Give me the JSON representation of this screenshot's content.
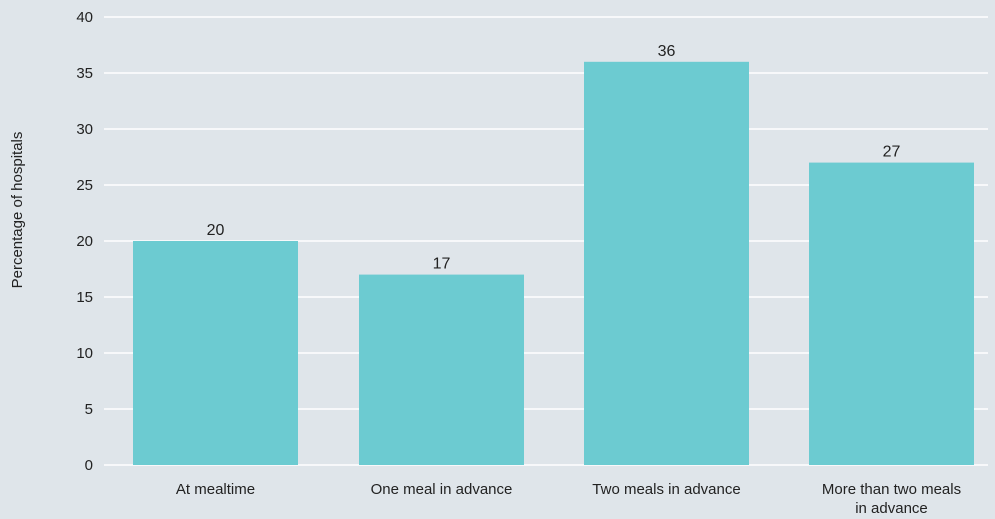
{
  "chart_data": {
    "type": "bar",
    "title": "",
    "xlabel": "",
    "ylabel": "Percentage of hospitals",
    "categories": [
      [
        "At mealtime"
      ],
      [
        "One meal in advance"
      ],
      [
        "Two meals in advance"
      ],
      [
        "More than two meals",
        "in advance"
      ]
    ],
    "values": [
      20,
      17,
      36,
      27
    ],
    "data_labels": [
      "20",
      "17",
      "36",
      "27"
    ],
    "ylim": [
      0,
      40
    ],
    "yticks": [
      0,
      5,
      10,
      15,
      20,
      25,
      30,
      35,
      40
    ],
    "grid": true,
    "legend": false,
    "colors": {
      "bar": "#6ccbd1",
      "grid": "#ffffff",
      "background": "#dfe5ea",
      "text": "#222222"
    }
  }
}
